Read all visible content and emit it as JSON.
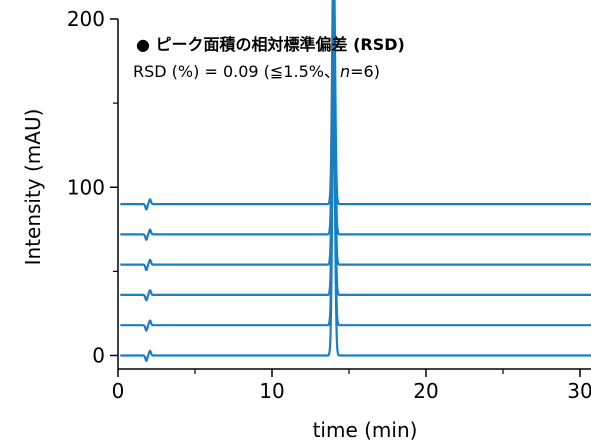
{
  "chart_data": {
    "type": "line",
    "xlabel": "time (min)",
    "ylabel": "Intensity (mAU)",
    "xlim": [
      0,
      31.5
    ],
    "ylim": [
      0,
      200
    ],
    "x_ticks": [
      0,
      10,
      20,
      30
    ],
    "y_ticks": [
      0,
      100,
      200
    ],
    "x_minor_ticks": [
      5,
      15,
      25
    ],
    "y_minor_ticks": [
      50,
      150
    ],
    "grid": false,
    "annotation": {
      "title": "● ピーク面積の相対標準偏差 (RSD)",
      "rsd_prefix": "RSD (%) = 0.09 (≦1.5%、",
      "rsd_n": "n",
      "rsd_suffix": "=6)"
    },
    "series_color": "#1a7fc1",
    "peak": {
      "retention_time_min": 14.0,
      "height_mau": 153
    },
    "disturbance_time_min": 2.0,
    "series": [
      {
        "baseline": 0
      },
      {
        "baseline": 18
      },
      {
        "baseline": 36
      },
      {
        "baseline": 54
      },
      {
        "baseline": 72
      },
      {
        "baseline": 90
      }
    ]
  }
}
